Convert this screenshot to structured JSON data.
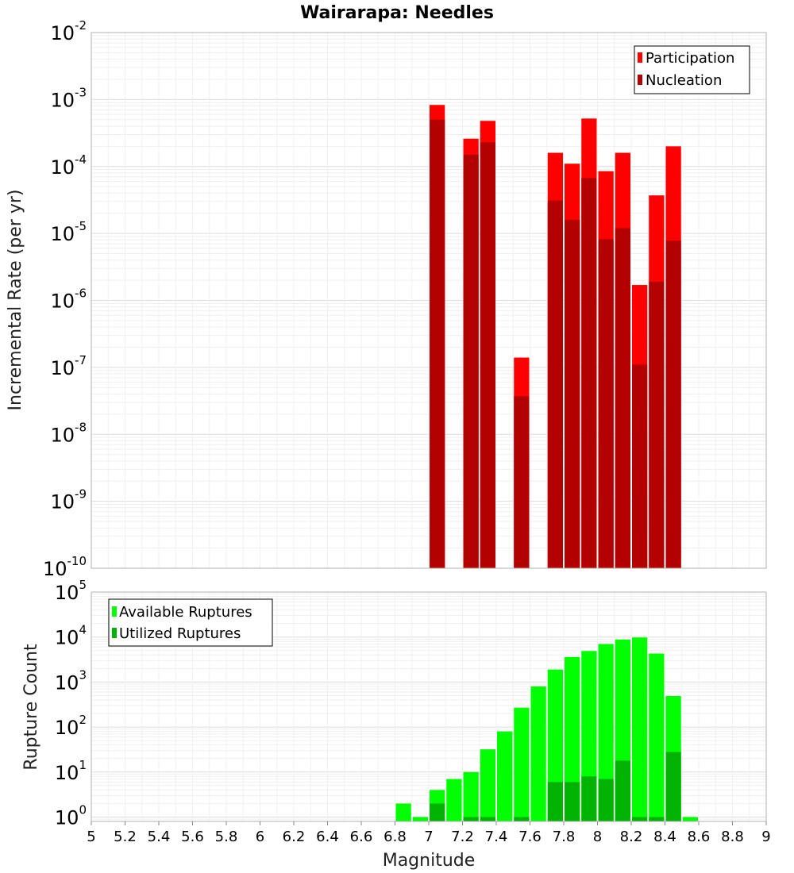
{
  "chart_data": [
    {
      "type": "bar",
      "title": "Wairarapa: Needles",
      "xlabel": "",
      "ylabel": "Incremental Rate (per yr)",
      "yscale": "log",
      "ylim": [
        1e-10,
        0.01
      ],
      "xlim": [
        5,
        9
      ],
      "bin_width": 0.1,
      "legend_position": "top-right",
      "series": [
        {
          "name": "Participation",
          "color": "#ff0000",
          "x": [
            7.05,
            7.25,
            7.35,
            7.55,
            7.75,
            7.85,
            7.95,
            8.05,
            8.15,
            8.25,
            8.35,
            8.45
          ],
          "values": [
            0.00083,
            0.00026,
            0.00048,
            1.4e-07,
            0.00016,
            0.00011,
            0.00052,
            8.5e-05,
            0.00016,
            1.7e-06,
            3.7e-05,
            0.0002
          ]
        },
        {
          "name": "Nucleation",
          "color": "#b30000",
          "x": [
            7.05,
            7.25,
            7.35,
            7.55,
            7.75,
            7.85,
            7.95,
            8.05,
            8.15,
            8.25,
            8.35,
            8.45
          ],
          "values": [
            0.0005,
            0.00015,
            0.00023,
            3.7e-08,
            3.1e-05,
            1.6e-05,
            6.7e-05,
            8.2e-06,
            1.2e-05,
            1.1e-07,
            1.9e-06,
            7.8e-06
          ]
        }
      ]
    },
    {
      "type": "bar",
      "title": "",
      "xlabel": "Magnitude",
      "ylabel": "Rupture Count",
      "yscale": "log",
      "ylim": [
        0.8,
        100000
      ],
      "xlim": [
        5,
        9
      ],
      "bin_width": 0.1,
      "legend_position": "top-left",
      "x_ticks": [
        "5",
        "5.2",
        "5.4",
        "5.6",
        "5.8",
        "6",
        "6.2",
        "6.4",
        "6.6",
        "6.8",
        "7",
        "7.2",
        "7.4",
        "7.6",
        "7.8",
        "8",
        "8.2",
        "8.4",
        "8.6",
        "8.8",
        "9"
      ],
      "series": [
        {
          "name": "Available Ruptures",
          "color": "#00ff00",
          "x": [
            6.85,
            6.95,
            7.05,
            7.15,
            7.25,
            7.35,
            7.45,
            7.55,
            7.65,
            7.75,
            7.85,
            7.95,
            8.05,
            8.15,
            8.25,
            8.35,
            8.45,
            8.55
          ],
          "values": [
            2,
            1,
            4,
            7,
            10,
            32,
            80,
            270,
            800,
            1900,
            3600,
            4900,
            7000,
            8800,
            9800,
            4300,
            490,
            1
          ]
        },
        {
          "name": "Utilized Ruptures",
          "color": "#00b300",
          "x": [
            7.05,
            7.25,
            7.35,
            7.55,
            7.75,
            7.85,
            7.95,
            8.05,
            8.15,
            8.25,
            8.35,
            8.45
          ],
          "values": [
            2,
            1,
            1,
            1,
            6,
            6,
            8,
            7,
            18,
            1,
            1,
            28
          ]
        }
      ]
    }
  ]
}
